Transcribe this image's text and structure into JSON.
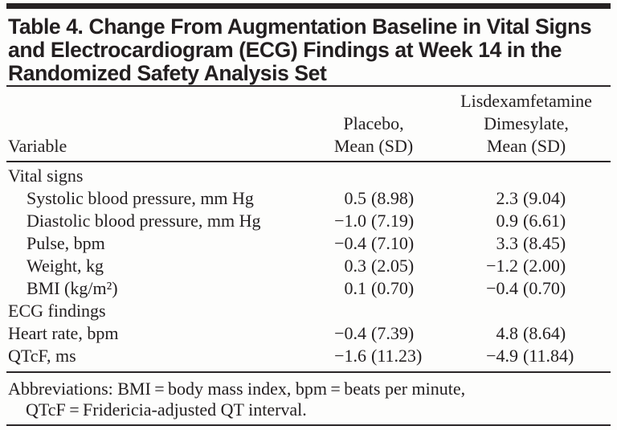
{
  "title": "Table 4. Change From Augmentation Baseline in Vital Signs\nand Electrocardiogram (ECG) Findings at Week 14 in the\nRandomized Safety Analysis Set",
  "colors": {
    "ink": "#231f20",
    "background": "#fdfdfc"
  },
  "table": {
    "header": {
      "variable": "Variable",
      "placebo": "Placebo,\nMean (SD)",
      "lisdexamfetamine": "Lisdexamfetamine\nDimesylate,\nMean (SD)"
    },
    "rows": [
      {
        "label": "Vital signs",
        "placebo_mean": "",
        "placebo_sd": "",
        "ldx_mean": "",
        "ldx_sd": ""
      },
      {
        "label": "Systolic blood pressure, mm Hg",
        "placebo_mean": "0.5",
        "placebo_sd": "(8.98)",
        "ldx_mean": "2.3",
        "ldx_sd": "(9.04)"
      },
      {
        "label": "Diastolic blood pressure, mm Hg",
        "placebo_mean": "−1.0",
        "placebo_sd": "(7.19)",
        "ldx_mean": "0.9",
        "ldx_sd": "(6.61)"
      },
      {
        "label": "Pulse, bpm",
        "placebo_mean": "−0.4",
        "placebo_sd": "(7.10)",
        "ldx_mean": "3.3",
        "ldx_sd": "(8.45)"
      },
      {
        "label": "Weight, kg",
        "placebo_mean": "0.3",
        "placebo_sd": "(2.05)",
        "ldx_mean": "−1.2",
        "ldx_sd": "(2.00)"
      },
      {
        "label": "BMI (kg/m²)",
        "placebo_mean": "0.1",
        "placebo_sd": "(0.70)",
        "ldx_mean": "−0.4",
        "ldx_sd": "(0.70)"
      },
      {
        "label": "ECG findings",
        "placebo_mean": "",
        "placebo_sd": "",
        "ldx_mean": "",
        "ldx_sd": ""
      },
      {
        "label": "Heart rate, bpm",
        "placebo_mean": "−0.4",
        "placebo_sd": "(7.39)",
        "ldx_mean": "4.8",
        "ldx_sd": "(8.64)"
      },
      {
        "label": "QTcF, ms",
        "placebo_mean": "−1.6",
        "placebo_sd": "(11.23)",
        "ldx_mean": "−4.9",
        "ldx_sd": "(11.84)"
      }
    ]
  },
  "footnote": {
    "line1": "Abbreviations: BMI = body mass index, bpm = beats per minute,",
    "line2": "QTcF = Fridericia-adjusted QT interval."
  }
}
